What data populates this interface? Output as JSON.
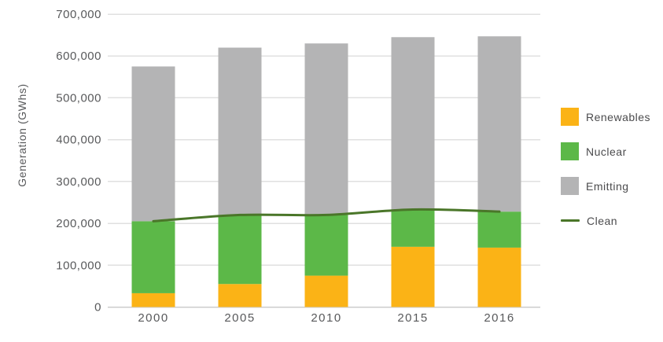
{
  "chart": {
    "background": "#FFFFFF",
    "axis_text_color": "#58595B",
    "gridline_color": "#E0E0E0",
    "baseline_color": "#CDCDCD"
  },
  "chart_data": {
    "type": "bar",
    "stacked": true,
    "title": "",
    "xlabel": "",
    "ylabel": "Generation (GWhs)",
    "categories": [
      "2000",
      "2005",
      "2010",
      "2015",
      "2016"
    ],
    "series": [
      {
        "name": "Renewables",
        "type": "bar",
        "color": "#FBB316",
        "values": [
          33000,
          55000,
          75000,
          144000,
          142000
        ]
      },
      {
        "name": "Nuclear",
        "type": "bar",
        "color": "#5CB848",
        "values": [
          172000,
          165000,
          145000,
          89000,
          86000
        ]
      },
      {
        "name": "Emitting",
        "type": "bar",
        "color": "#B4B4B5",
        "values": [
          370000,
          400000,
          410000,
          412000,
          419000
        ]
      },
      {
        "name": "Clean",
        "type": "line",
        "color": "#4A7629",
        "values": [
          205000,
          220000,
          220000,
          233000,
          228000
        ]
      }
    ],
    "ylim": [
      0,
      700000
    ],
    "ytick_step": 100000,
    "ytick_labels": [
      "0",
      "100,000",
      "200,000",
      "300,000",
      "400,000",
      "500,000",
      "600,000",
      "700,000"
    ],
    "grid": true,
    "legend_position": "right"
  }
}
